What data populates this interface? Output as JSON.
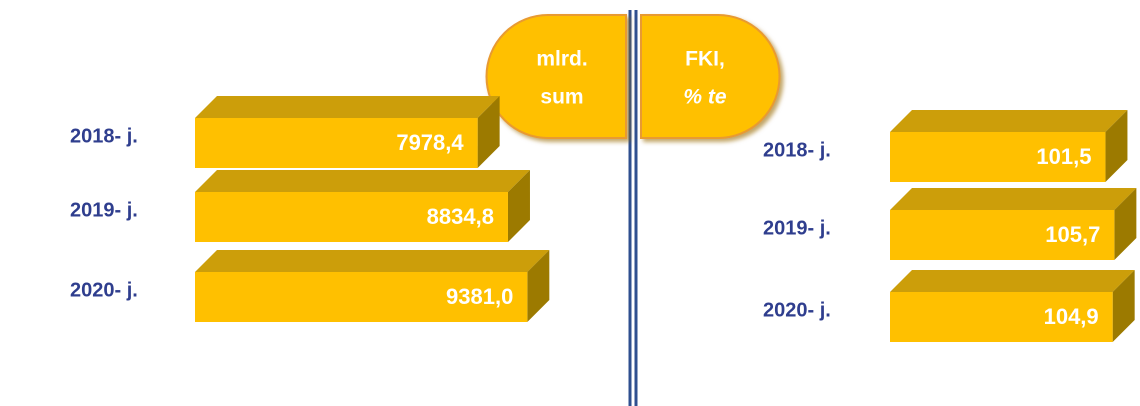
{
  "chart_data": [
    {
      "type": "bar",
      "orientation": "horizontal",
      "title_lines": [
        "mlrd.",
        "sum"
      ],
      "categories": [
        "2018- j.",
        "2019- j.",
        "2020- j."
      ],
      "values": [
        7978.4,
        8834.8,
        9381.0
      ],
      "value_labels": [
        "7978,4",
        "8834,8",
        "9381,0"
      ],
      "color": "#ffc000"
    },
    {
      "type": "bar",
      "orientation": "horizontal",
      "title_lines": [
        "FKI,",
        "% te"
      ],
      "categories": [
        "2018- j.",
        "2019- j.",
        "2020- j."
      ],
      "values": [
        101.5,
        105.7,
        104.9
      ],
      "value_labels": [
        "101,5",
        "105,7",
        "104,9"
      ],
      "color": "#ffc000"
    }
  ]
}
